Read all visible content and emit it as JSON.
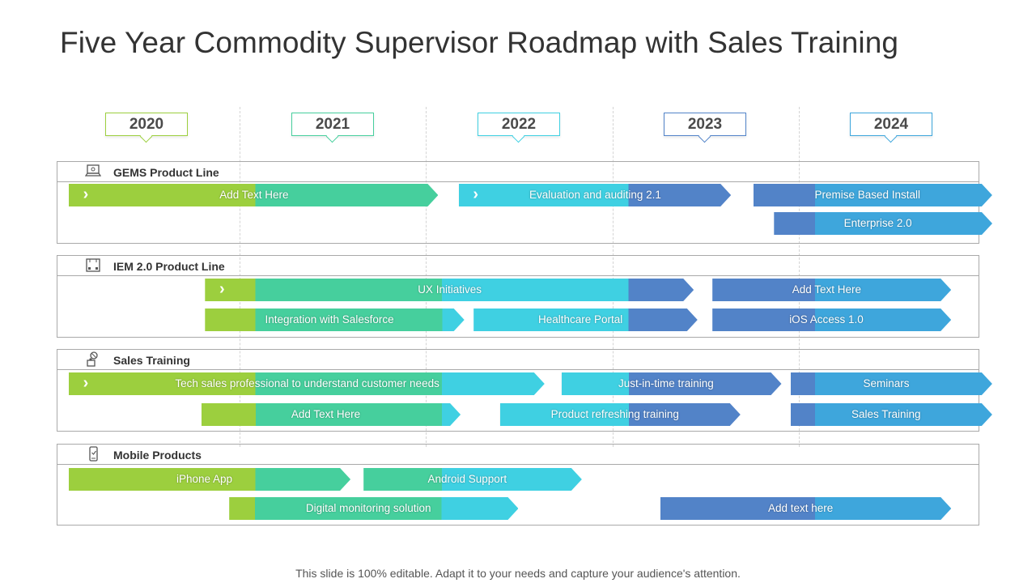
{
  "title": "Five Year Commodity Supervisor Roadmap with Sales Training",
  "footer": "This slide is 100% editable. Adapt it to your needs and capture your audience's attention.",
  "colors": {
    "green": "#9ccf3e",
    "teal": "#46cf9d",
    "cyan": "#3fd0e2",
    "blue": "#5283c8",
    "skyblue": "#3ea6dc"
  },
  "years": [
    {
      "label": "2020",
      "border": "#9ccf3e"
    },
    {
      "label": "2021",
      "border": "#46cf9d"
    },
    {
      "label": "2022",
      "border": "#3fd0e2"
    },
    {
      "label": "2023",
      "border": "#5283c8"
    },
    {
      "label": "2024",
      "border": "#3ea6dc"
    }
  ],
  "sections": [
    {
      "title": "GEMS Product Line",
      "icon": "laptop-icon",
      "bars": [
        {
          "label": "Add Text Here",
          "start": 2020.0,
          "end": 2021.98,
          "row": 0,
          "chevron": true
        },
        {
          "label": "Evaluation and auditing 2.1",
          "start": 2022.09,
          "end": 2023.55,
          "row": 0,
          "chevron": true
        },
        {
          "label": "Premise Based Install",
          "start": 2023.67,
          "end": 2024.95,
          "row": 0
        },
        {
          "label": "Enterprise 2.0",
          "start": 2023.78,
          "end": 2024.95,
          "row": 1
        }
      ]
    },
    {
      "title": "IEM 2.0 Product Line",
      "icon": "server-box-icon",
      "bars": [
        {
          "label": "UX Initiatives",
          "start": 2020.73,
          "end": 2023.35,
          "row": 0,
          "chevron": true
        },
        {
          "label": "Add Text Here",
          "start": 2023.45,
          "end": 2024.73,
          "row": 0
        },
        {
          "label": "Integration with Salesforce",
          "start": 2020.73,
          "end": 2022.12,
          "row": 1
        },
        {
          "label": "Healthcare Portal",
          "start": 2022.17,
          "end": 2023.37,
          "row": 1
        },
        {
          "label": "iOS Access 1.0",
          "start": 2023.45,
          "end": 2024.73,
          "row": 1
        }
      ]
    },
    {
      "title": "Sales Training",
      "icon": "person-target-icon",
      "bars": [
        {
          "label": "Tech sales professional to understand customer needs",
          "start": 2020.0,
          "end": 2022.55,
          "row": 0,
          "chevron": true
        },
        {
          "label": "Just-in-time training",
          "start": 2022.64,
          "end": 2023.82,
          "row": 0
        },
        {
          "label": "Seminars",
          "start": 2023.87,
          "end": 2024.95,
          "row": 0
        },
        {
          "label": "Add Text Here",
          "start": 2020.71,
          "end": 2022.1,
          "row": 1
        },
        {
          "label": "Product refreshing training",
          "start": 2022.31,
          "end": 2023.6,
          "row": 1
        },
        {
          "label": "Sales Training",
          "start": 2023.87,
          "end": 2024.95,
          "row": 1
        }
      ]
    },
    {
      "title": "Mobile Products",
      "icon": "mobile-phone-icon",
      "bars": [
        {
          "label": "iPhone App",
          "start": 2020.0,
          "end": 2021.51,
          "row": 0
        },
        {
          "label": "Android Support",
          "start": 2021.58,
          "end": 2022.75,
          "row": 0
        },
        {
          "label": "Digital monitoring solution",
          "start": 2020.86,
          "end": 2022.41,
          "row": 1
        },
        {
          "label": "Add text here",
          "start": 2023.17,
          "end": 2024.73,
          "row": 1
        }
      ]
    }
  ]
}
